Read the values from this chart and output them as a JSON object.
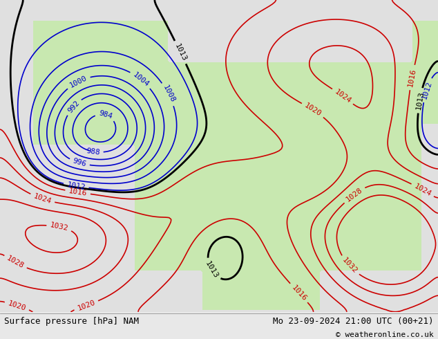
{
  "title_left": "Surface pressure [hPa] NAM",
  "title_right": "Mo 23-09-2024 21:00 UTC (00+21)",
  "copyright": "© weatheronline.co.uk",
  "bg_color": "#e8e8e8",
  "land_color": "#c8e8b0",
  "ocean_color": "#e0e0e0",
  "border_bottom_color": "#d0d0d0",
  "contour_blue_color": "#0000cc",
  "contour_red_color": "#cc0000",
  "contour_black_color": "#000000",
  "label_fontsize": 8,
  "title_fontsize": 9,
  "copyright_fontsize": 8
}
